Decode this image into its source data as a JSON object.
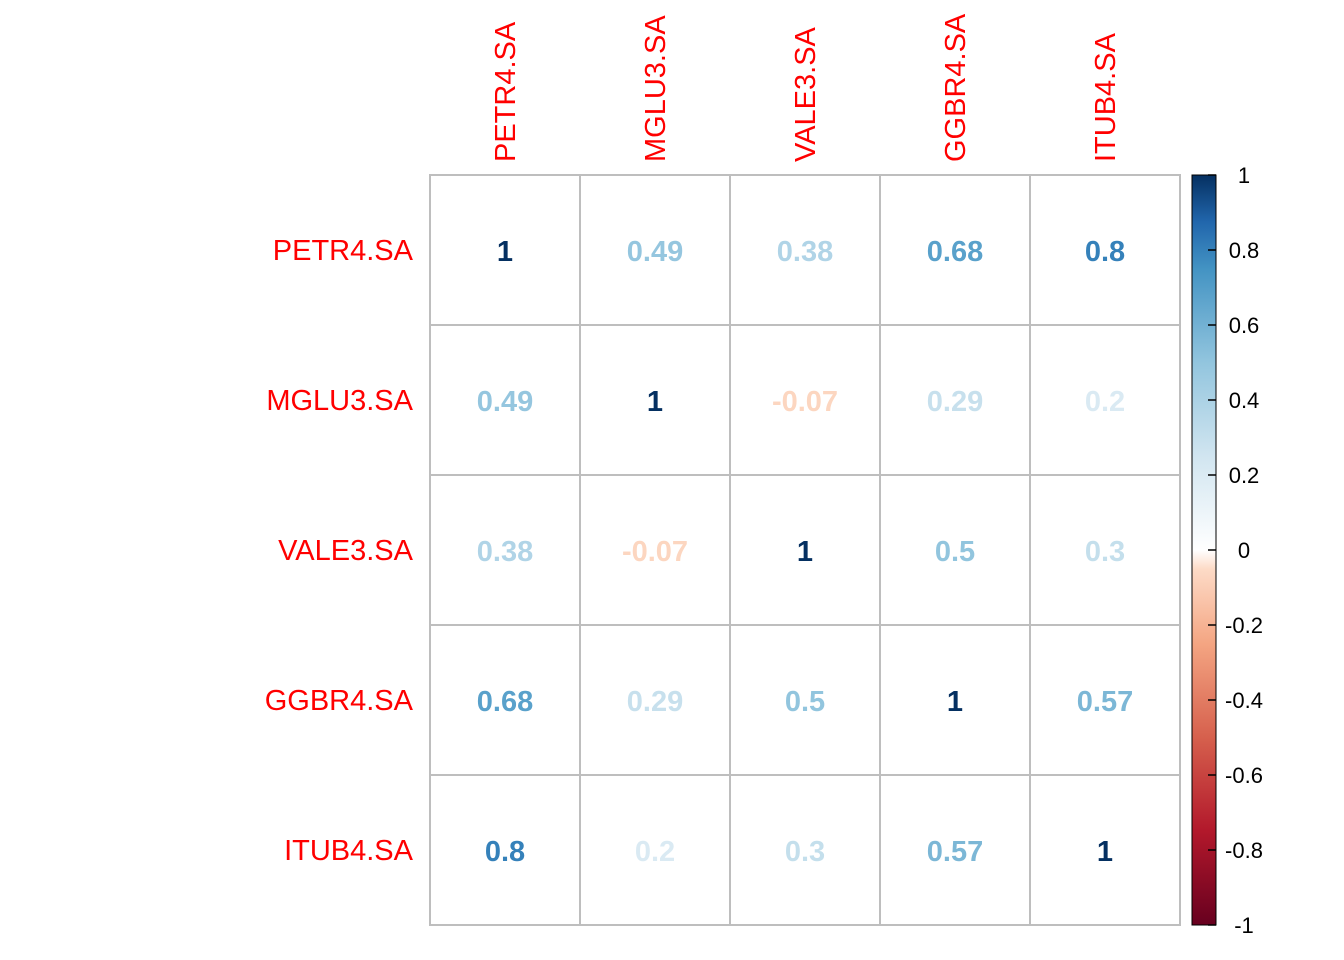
{
  "chart_data": {
    "type": "heatmap",
    "title": "",
    "variables": [
      "PETR4.SA",
      "MGLU3.SA",
      "VALE3.SA",
      "GGBR4.SA",
      "ITUB4.SA"
    ],
    "matrix": [
      [
        1,
        0.49,
        0.38,
        0.68,
        0.8
      ],
      [
        0.49,
        1,
        -0.07,
        0.29,
        0.2
      ],
      [
        0.38,
        -0.07,
        1,
        0.5,
        0.3
      ],
      [
        0.68,
        0.29,
        0.5,
        1,
        0.57
      ],
      [
        0.8,
        0.2,
        0.3,
        0.57,
        1
      ]
    ],
    "value_labels": [
      [
        "1",
        "0.49",
        "0.38",
        "0.68",
        "0.8"
      ],
      [
        "0.49",
        "1",
        "-0.07",
        "0.29",
        "0.2"
      ],
      [
        "0.38",
        "-0.07",
        "1",
        "0.5",
        "0.3"
      ],
      [
        "0.68",
        "0.29",
        "0.5",
        "1",
        "0.57"
      ],
      [
        "0.8",
        "0.2",
        "0.3",
        "0.57",
        "1"
      ]
    ],
    "color_scale": {
      "range": [
        -1,
        1
      ],
      "ticks": [
        1,
        0.8,
        0.6,
        0.4,
        0.2,
        0,
        -0.2,
        -0.4,
        -0.6,
        -0.8,
        -1
      ],
      "tick_labels": [
        "1",
        "0.8",
        "0.6",
        "0.4",
        "0.2",
        "0",
        "-0.2",
        "-0.4",
        "-0.6",
        "-0.8",
        "-1"
      ],
      "stops": [
        {
          "value": -1,
          "color": "#67001F"
        },
        {
          "value": -0.75,
          "color": "#B2182B"
        },
        {
          "value": -0.5,
          "color": "#D6604D"
        },
        {
          "value": -0.25,
          "color": "#F4A582"
        },
        {
          "value": -0.05,
          "color": "#FDDBC7"
        },
        {
          "value": 0,
          "color": "#FFFFFF"
        },
        {
          "value": 0.25,
          "color": "#D1E5F0"
        },
        {
          "value": 0.5,
          "color": "#92C5DE"
        },
        {
          "value": 0.75,
          "color": "#4393C3"
        },
        {
          "value": 0.875,
          "color": "#2166AC"
        },
        {
          "value": 1,
          "color": "#053061"
        }
      ]
    },
    "colors": {
      "label_text": "#FF0000",
      "grid_line": "#BEBEBE",
      "legend_border": "#000000"
    },
    "legend_placement": "right",
    "column_label_orientation": "vertical"
  }
}
